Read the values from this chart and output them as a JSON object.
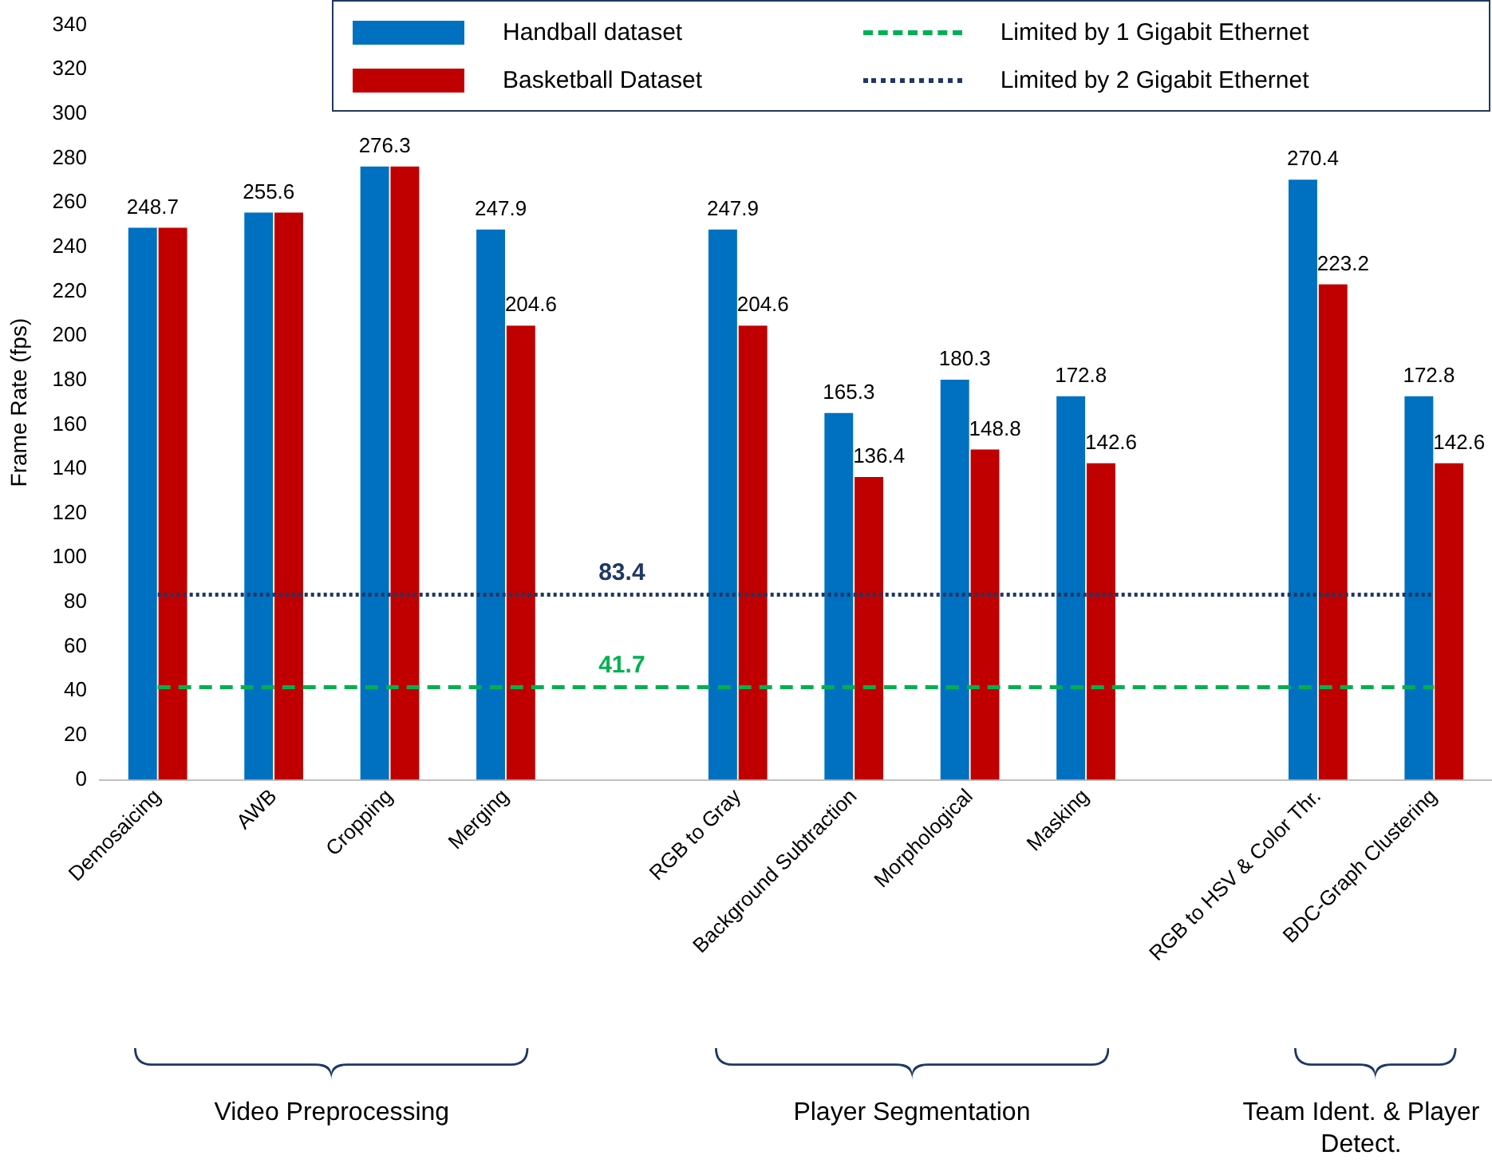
{
  "chart_data": {
    "type": "bar",
    "ylabel": "Frame Rate (fps)",
    "categories": [
      "Demosaicing",
      "AWB",
      "Cropping",
      "Merging",
      null,
      "RGB to Gray",
      "Background Subtraction",
      "Morphological",
      "Masking",
      null,
      "RGB to HSV & Color Thr.",
      "BDC-Graph Clustering"
    ],
    "series": [
      {
        "name": "Handball dataset",
        "color": "#0070c0",
        "values": [
          248.7,
          255.6,
          276.3,
          247.9,
          null,
          247.9,
          165.3,
          180.3,
          172.8,
          null,
          270.4,
          172.8
        ],
        "value_labels": [
          "248.7",
          "255.6",
          "276.3",
          "247.9",
          null,
          "247.9",
          "165.3",
          "180.3",
          "172.8",
          null,
          "270.4",
          "172.8"
        ]
      },
      {
        "name": "Basketball Dataset",
        "color": "#c00000",
        "values": [
          248.7,
          255.6,
          276.3,
          204.6,
          null,
          204.6,
          136.4,
          148.8,
          142.6,
          null,
          223.2,
          142.6
        ],
        "value_labels": [
          null,
          null,
          null,
          "204.6",
          null,
          "204.6",
          "136.4",
          "148.8",
          "142.6",
          null,
          "223.2",
          "142.6"
        ]
      },
      {
        "name": "Limited by 1 Gigabit Ethernet",
        "type": "line",
        "color": "#00b050",
        "line_style": "dashed",
        "marker": "none",
        "values": [
          41.7,
          41.7,
          41.7,
          41.7,
          41.7,
          41.7,
          41.7,
          41.7,
          41.7,
          41.7,
          41.7,
          41.7
        ],
        "value_labels": [
          null,
          null,
          null,
          null,
          "41.7",
          null,
          null,
          null,
          null,
          null,
          null,
          null
        ]
      },
      {
        "name": "Limited by 2 Gigabit Ethernet",
        "type": "line",
        "color": "#1f3864",
        "line_style": "dotted",
        "marker": "none",
        "values": [
          83.4,
          83.4,
          83.4,
          83.4,
          83.4,
          83.4,
          83.4,
          83.4,
          83.4,
          83.4,
          83.4,
          83.4
        ],
        "value_labels": [
          null,
          null,
          null,
          null,
          "83.4",
          null,
          null,
          null,
          null,
          null,
          null,
          null
        ]
      }
    ],
    "ylim": [
      0,
      340
    ],
    "yticks": [
      0,
      20,
      40,
      60,
      80,
      100,
      120,
      140,
      160,
      180,
      200,
      220,
      240,
      260,
      280,
      300,
      320,
      340
    ],
    "grid": false,
    "legend": "top",
    "annotations": [
      "Video Preprocessing",
      "Player Segmentation",
      "Team Ident. & Player Detect."
    ]
  }
}
